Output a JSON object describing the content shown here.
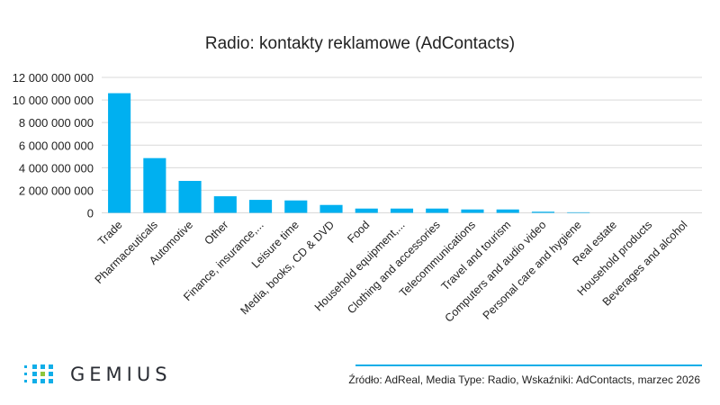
{
  "chart_data": {
    "type": "bar",
    "title": "Radio: kontakty reklamowe (AdContacts)",
    "categories": [
      "Trade",
      "Pharmaceuticals",
      "Automotive",
      "Other",
      "Finance, insurance,...",
      "Leisure time",
      "Media, books, CD & DVD",
      "Food",
      "Household equipment,...",
      "Clothing and accessories",
      "Telecommunications",
      "Travel and tourism",
      "Computers and audio video",
      "Personal care and hygiene",
      "Real estate",
      "Household products",
      "Beverages and alcohol"
    ],
    "values": [
      10600000000,
      4850000000,
      2830000000,
      1470000000,
      1150000000,
      1100000000,
      700000000,
      380000000,
      380000000,
      380000000,
      300000000,
      300000000,
      100000000,
      50000000,
      0,
      0,
      0
    ],
    "ylim": [
      0,
      12000000000
    ],
    "yticks": [
      "0",
      "2 000 000 000",
      "4 000 000 000",
      "6 000 000 000",
      "8 000 000 000",
      "10 000 000 000",
      "12 000 000 000"
    ],
    "grid": true,
    "color": "#00b0f0"
  },
  "footer": {
    "source": "Źródło: AdReal, Media Type: Radio, Wskaźniki: AdContacts, marzec 2026",
    "logo": "GEMIUS"
  }
}
